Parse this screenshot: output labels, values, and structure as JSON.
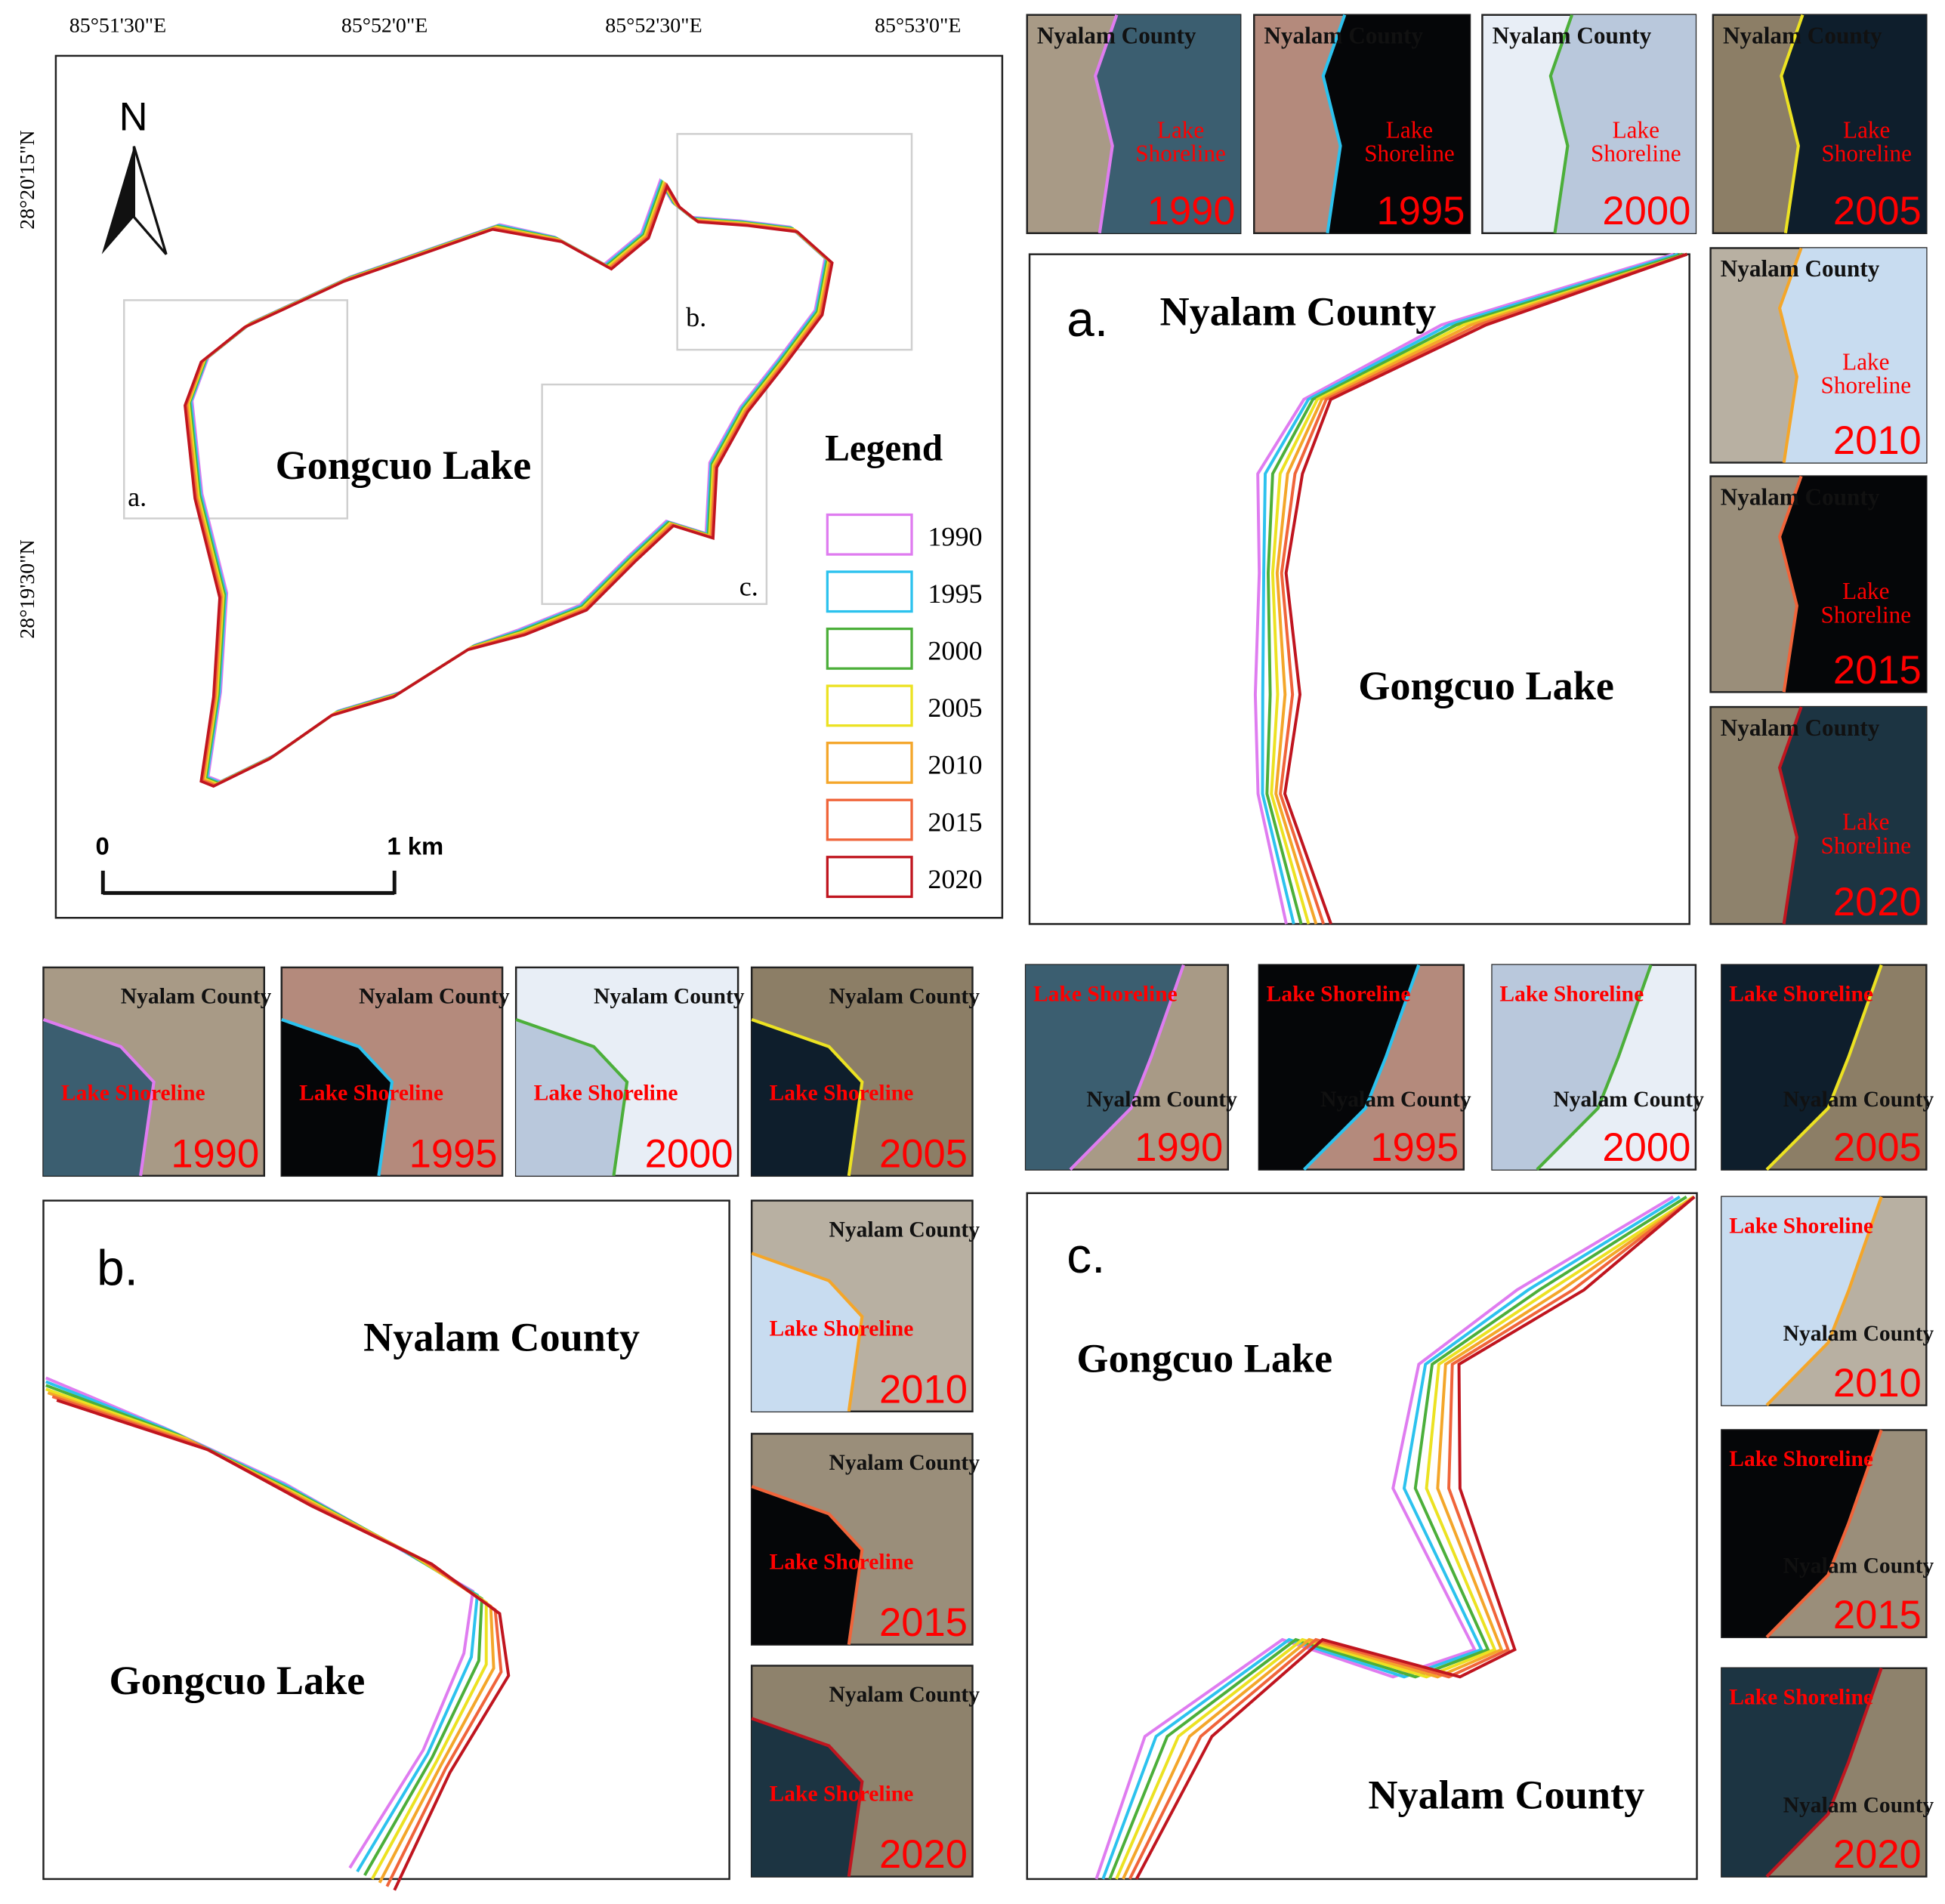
{
  "main_map": {
    "x_ticks": [
      "85°51'30\"E",
      "85°52'0\"E",
      "85°52'30\"E",
      "85°53'0\"E"
    ],
    "y_ticks": [
      "28°20'15\"N",
      "28°19'30\"N"
    ],
    "north": "N",
    "lake_label": "Gongcuo Lake",
    "box_labels": [
      "a.",
      "b.",
      "c."
    ],
    "scale_labels": [
      "0",
      "1 km"
    ],
    "legend": {
      "title": "Legend",
      "items": [
        {
          "label": "1990",
          "color": "#df7cf0"
        },
        {
          "label": "1995",
          "color": "#2cc2ee"
        },
        {
          "label": "2000",
          "color": "#4caf3a"
        },
        {
          "label": "2005",
          "color": "#ece222"
        },
        {
          "label": "2010",
          "color": "#f4a62a"
        },
        {
          "label": "2015",
          "color": "#f0643a"
        },
        {
          "label": "2020",
          "color": "#c0151f"
        }
      ]
    }
  },
  "panels": [
    {
      "label": "a.",
      "county": "Nyalam County",
      "lake": "Gongcuo Lake",
      "thumbnails": [
        {
          "county": "Nyalam County",
          "shoreline": "Lake Shoreline",
          "year": "1990"
        },
        {
          "county": "Nyalam County",
          "shoreline": "Lake Shoreline",
          "year": "1995"
        },
        {
          "county": "Nyalam County",
          "shoreline": "Lake Shoreline",
          "year": "2000"
        },
        {
          "county": "Nyalam County",
          "shoreline": "Lake Shoreline",
          "year": "2005"
        },
        {
          "county": "Nyalam County",
          "shoreline": "Lake Shoreline",
          "year": "2010"
        },
        {
          "county": "Nyalam County",
          "shoreline": "Lake Shoreline",
          "year": "2015"
        },
        {
          "county": "Nyalam County",
          "shoreline": "Lake Shoreline",
          "year": "2020"
        }
      ]
    },
    {
      "label": "b.",
      "county": "Nyalam County",
      "lake": "Gongcuo Lake",
      "thumbnails": [
        {
          "county": "Nyalam County",
          "shoreline": "Lake Shoreline",
          "year": "1990"
        },
        {
          "county": "Nyalam County",
          "shoreline": "Lake Shoreline",
          "year": "1995"
        },
        {
          "county": "Nyalam County",
          "shoreline": "Lake Shoreline",
          "year": "2000"
        },
        {
          "county": "Nyalam County",
          "shoreline": "Lake Shoreline",
          "year": "2005"
        },
        {
          "county": "Nyalam County",
          "shoreline": "Lake Shoreline",
          "year": "2010"
        },
        {
          "county": "Nyalam County",
          "shoreline": "Lake Shoreline",
          "year": "2015"
        },
        {
          "county": "Nyalam County",
          "shoreline": "Lake Shoreline",
          "year": "2020"
        }
      ]
    },
    {
      "label": "c.",
      "county": "Nyalam County",
      "lake": "Gongcuo Lake",
      "thumbnails": [
        {
          "county": "Nyalam County",
          "shoreline": "Lake Shoreline",
          "year": "1990"
        },
        {
          "county": "Nyalam County",
          "shoreline": "Lake Shoreline",
          "year": "1995"
        },
        {
          "county": "Nyalam County",
          "shoreline": "Lake Shoreline",
          "year": "2000"
        },
        {
          "county": "Nyalam County",
          "shoreline": "Lake Shoreline",
          "year": "2005"
        },
        {
          "county": "Nyalam County",
          "shoreline": "Lake Shoreline",
          "year": "2010"
        },
        {
          "county": "Nyalam County",
          "shoreline": "Lake Shoreline",
          "year": "2015"
        },
        {
          "county": "Nyalam County",
          "shoreline": "Lake Shoreline",
          "year": "2020"
        }
      ]
    }
  ]
}
